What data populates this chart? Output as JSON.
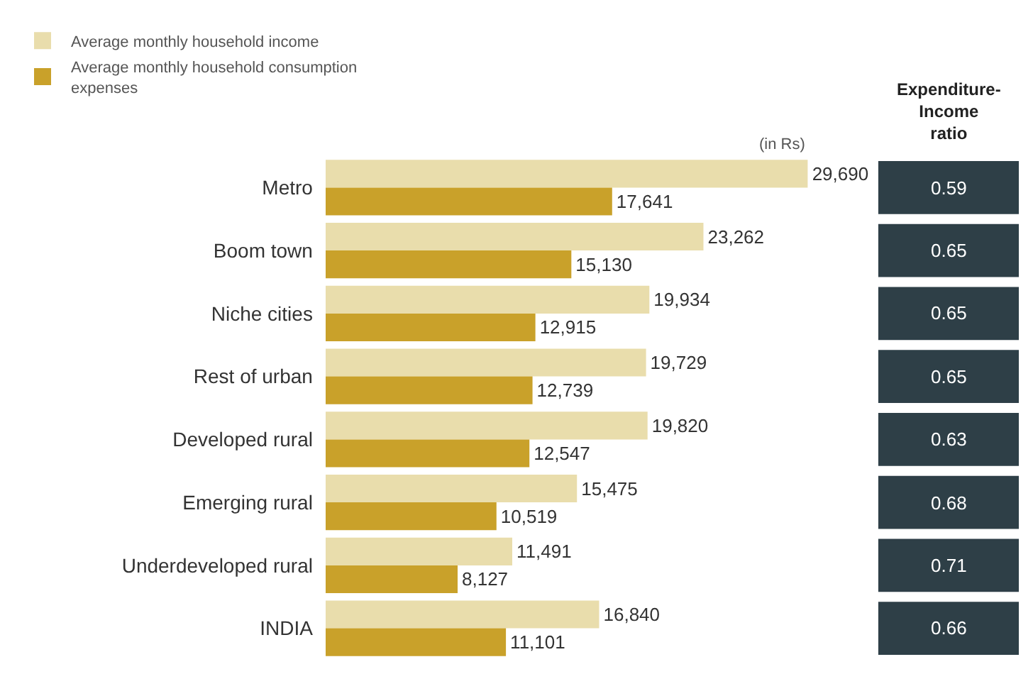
{
  "chart_data": [
    {
      "type": "bar",
      "orientation": "horizontal",
      "legend": "top left",
      "tick_labels": "y",
      "categories": [
        "Metro",
        "Boom town",
        "Niche cities",
        "Rest of urban",
        "Developed rural",
        "Emerging rural",
        "Underdeveloped rural",
        "INDIA"
      ],
      "series": [
        {
          "name": "Average monthly household income",
          "color": "#e9ddac",
          "values": [
            29690,
            23262,
            19934,
            19729,
            19820,
            15475,
            11491,
            16840
          ],
          "value_labels": [
            "29,690",
            "23,262",
            "19,934",
            "19,729",
            "19,820",
            "15,475",
            "11,491",
            "16,840"
          ]
        },
        {
          "name": "Average monthly household consumption expenses",
          "color": "#c9a12a",
          "values": [
            17641,
            15130,
            12915,
            12739,
            12547,
            10519,
            8127,
            11101
          ],
          "value_labels": [
            "17,641",
            "15,130",
            "12,915",
            "12,739",
            "12,547",
            "10,519",
            "8,127",
            "11,101"
          ]
        }
      ],
      "annotations": [
        "(in Rs)"
      ]
    },
    {
      "type": "other",
      "title": "Expenditure-Income ratio",
      "color": "#2e3f47",
      "data_labels": true,
      "values": [
        0.59,
        0.65,
        0.65,
        0.65,
        0.63,
        0.68,
        0.71,
        0.66
      ]
    }
  ]
}
